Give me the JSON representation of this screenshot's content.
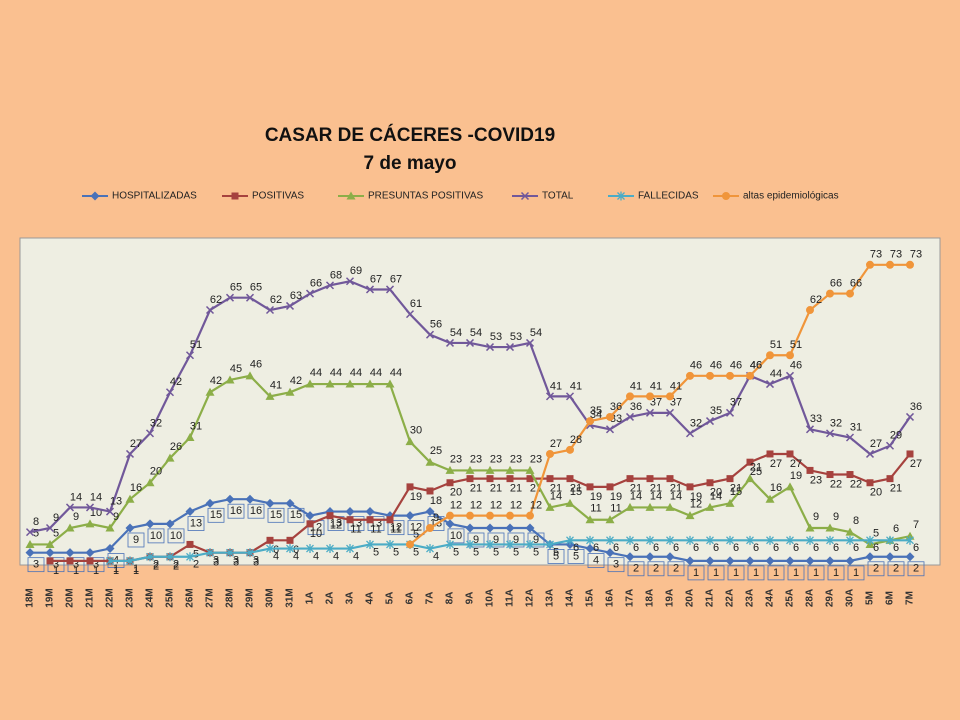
{
  "chart_data": {
    "type": "line",
    "title": "CASAR DE CÁCERES -COVID19",
    "subtitle": "7 de mayo",
    "categories": [
      "18M",
      "19M",
      "20M",
      "21M",
      "22M",
      "23M",
      "24M",
      "25M",
      "26M",
      "27M",
      "28M",
      "29M",
      "30M",
      "31M",
      "1A",
      "2A",
      "3A",
      "4A",
      "5A",
      "6A",
      "7A",
      "8A",
      "9A",
      "10A",
      "11A",
      "12A",
      "13A",
      "14A",
      "15A",
      "16A",
      "17A",
      "18A",
      "19A",
      "20A",
      "21A",
      "22A",
      "23A",
      "24A",
      "25A",
      "28A",
      "29A",
      "30A",
      "5M",
      "6M",
      "7M"
    ],
    "ylim": [
      0,
      80
    ],
    "series": [
      {
        "name": "HOSPITALIZADAS",
        "color": "#4a72b8",
        "marker": "diamond",
        "values": [
          3,
          3,
          3,
          3,
          4,
          9,
          10,
          10,
          13,
          15,
          16,
          16,
          15,
          15,
          12,
          13,
          13,
          13,
          12,
          12,
          13,
          10,
          9,
          9,
          9,
          9,
          5,
          5,
          4,
          3,
          2,
          2,
          2,
          1,
          1,
          1,
          1,
          1,
          1,
          1,
          1,
          1,
          2,
          2,
          2
        ]
      },
      {
        "name": "POSITIVAS",
        "color": "#a6423e",
        "marker": "square",
        "values": [
          null,
          1,
          1,
          1,
          1,
          1,
          2,
          2,
          5,
          3,
          3,
          3,
          6,
          6,
          10,
          12,
          11,
          11,
          11,
          19,
          18,
          20,
          21,
          21,
          21,
          21,
          21,
          21,
          19,
          19,
          21,
          21,
          21,
          19,
          20,
          21,
          25,
          27,
          27,
          23,
          22,
          22,
          20,
          21,
          27
        ]
      },
      {
        "name": "PRESUNTAS POSITIVAS",
        "color": "#8cae48",
        "marker": "triangle",
        "values": [
          5,
          5,
          9,
          10,
          9,
          16,
          20,
          26,
          31,
          42,
          45,
          46,
          41,
          42,
          44,
          44,
          44,
          44,
          44,
          30,
          25,
          23,
          23,
          23,
          23,
          23,
          14,
          15,
          11,
          11,
          14,
          14,
          14,
          12,
          14,
          15,
          21,
          16,
          19,
          9,
          9,
          8,
          5,
          6,
          7
        ]
      },
      {
        "name": "TOTAL",
        "color": "#71589a",
        "marker": "x",
        "values": [
          8,
          9,
          14,
          14,
          13,
          27,
          32,
          42,
          51,
          62,
          65,
          65,
          62,
          63,
          66,
          68,
          69,
          67,
          67,
          61,
          56,
          54,
          54,
          53,
          53,
          54,
          41,
          41,
          34,
          33,
          36,
          37,
          37,
          32,
          35,
          37,
          46,
          44,
          46,
          33,
          32,
          31,
          27,
          29,
          36
        ]
      },
      {
        "name": "FALLECIDAS",
        "color": "#4bacc6",
        "marker": "star",
        "values": [
          null,
          null,
          null,
          null,
          1,
          1,
          2,
          2,
          2,
          3,
          3,
          3,
          4,
          4,
          4,
          4,
          4,
          5,
          5,
          5,
          4,
          5,
          5,
          5,
          5,
          5,
          5,
          6,
          6,
          6,
          6,
          6,
          6,
          6,
          6,
          6,
          6,
          6,
          6,
          6,
          6,
          6,
          6,
          6,
          6
        ]
      },
      {
        "name": "altas epidemiológicas",
        "color": "#f0953a",
        "marker": "circle",
        "values": [
          null,
          null,
          null,
          null,
          null,
          null,
          null,
          null,
          null,
          null,
          null,
          null,
          null,
          null,
          null,
          null,
          null,
          null,
          null,
          5,
          9,
          12,
          12,
          12,
          12,
          12,
          27,
          28,
          35,
          36,
          41,
          41,
          41,
          46,
          46,
          46,
          46,
          51,
          51,
          62,
          66,
          66,
          73,
          73,
          73
        ]
      }
    ]
  }
}
